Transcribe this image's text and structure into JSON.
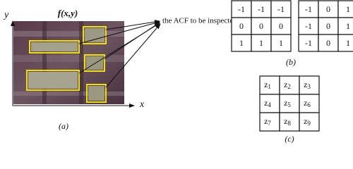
{
  "panel_a": {
    "function_label": "f(x,y)",
    "y_axis": "y",
    "x_axis": "x",
    "annotation": "the ACF  to be inspected",
    "caption": "(a)"
  },
  "panel_b": {
    "kernels": [
      [
        [
          -1,
          -1,
          -1
        ],
        [
          0,
          0,
          0
        ],
        [
          1,
          1,
          1
        ]
      ],
      [
        [
          -1,
          0,
          1
        ],
        [
          -1,
          0,
          1
        ],
        [
          -1,
          0,
          1
        ]
      ]
    ],
    "caption": "(b)"
  },
  "panel_c": {
    "cells": [
      [
        {
          "letter": "z",
          "index": "1"
        },
        {
          "letter": "z",
          "index": "2"
        },
        {
          "letter": "z",
          "index": "3"
        }
      ],
      [
        {
          "letter": "z",
          "index": "4"
        },
        {
          "letter": "z",
          "index": "5"
        },
        {
          "letter": "z",
          "index": "6"
        }
      ],
      [
        {
          "letter": "z",
          "index": "7"
        },
        {
          "letter": "z",
          "index": "8"
        },
        {
          "letter": "z",
          "index": "9"
        }
      ]
    ],
    "caption": "(c)"
  }
}
